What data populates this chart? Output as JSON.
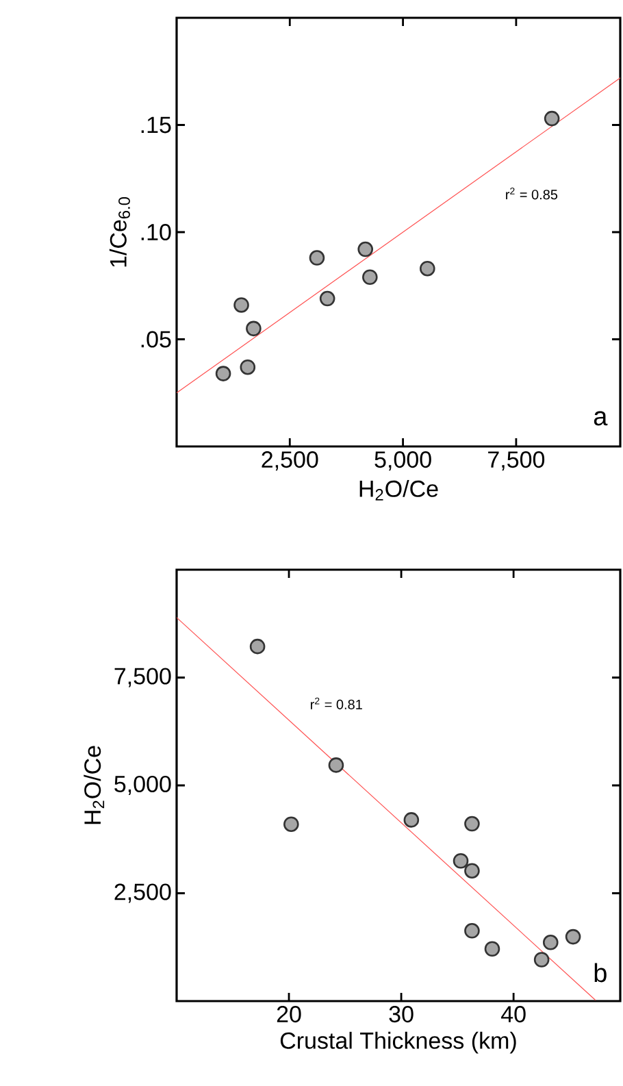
{
  "chart_data": [
    {
      "type": "scatter",
      "xlabel": "H$_{2}$O/Ce",
      "ylabel": "1/Ce$_{6.0}$",
      "annotations": [
        "r$^{2}$ = 0.85",
        "a"
      ],
      "marker": "circle",
      "xlim": [
        0,
        9800
      ],
      "ylim": [
        0,
        0.2
      ],
      "xticks": [
        {
          "value": 2500,
          "label": "2,500"
        },
        {
          "value": 5000,
          "label": "5,000"
        },
        {
          "value": 7500,
          "label": "7,500"
        }
      ],
      "yticks": [
        {
          "value": 0.05,
          "label": ".05"
        },
        {
          "value": 0.1,
          "label": ".10"
        },
        {
          "value": 0.15,
          "label": ".15"
        }
      ],
      "series": [
        {
          "color": "#a6a6a6",
          "x": [
            1030,
            1570,
            1430,
            1700,
            3100,
            3330,
            4170,
            4270,
            5540,
            8290
          ],
          "values": [
            0.034,
            0.037,
            0.066,
            0.055,
            0.088,
            0.069,
            0.092,
            0.079,
            0.083,
            0.153
          ]
        },
        {
          "type": "line",
          "color": "#ff5050",
          "marker": "none",
          "x": [
            0,
            9800
          ],
          "values": [
            0.025,
            0.172
          ]
        }
      ]
    },
    {
      "type": "scatter",
      "xlabel": "Crustal Thickness (km)",
      "ylabel": "H$_{2}$O/Ce",
      "annotations": [
        "r$^{2}$ = 0.81",
        "b"
      ],
      "marker": "circle",
      "xlim": [
        10,
        49.5
      ],
      "ylim": [
        0,
        10000
      ],
      "xticks": [
        20,
        30,
        40
      ],
      "yticks": [
        {
          "value": 2500,
          "label": "2,500"
        },
        {
          "value": 5000,
          "label": "5,000"
        },
        {
          "value": 7500,
          "label": "7,500"
        }
      ],
      "series": [
        {
          "color": "#a6a6a6",
          "x": [
            17.2,
            20.2,
            24.2,
            30.9,
            36.3,
            35.3,
            36.3,
            36.3,
            38.1,
            42.5,
            43.3,
            45.3
          ],
          "values": [
            8220,
            4100,
            5470,
            4200,
            4110,
            3250,
            3020,
            1630,
            1210,
            960,
            1360,
            1490
          ]
        },
        {
          "type": "line",
          "color": "#ff5050",
          "marker": "none",
          "x": [
            10,
            47.3
          ],
          "values": [
            8890,
            20
          ]
        }
      ]
    }
  ]
}
